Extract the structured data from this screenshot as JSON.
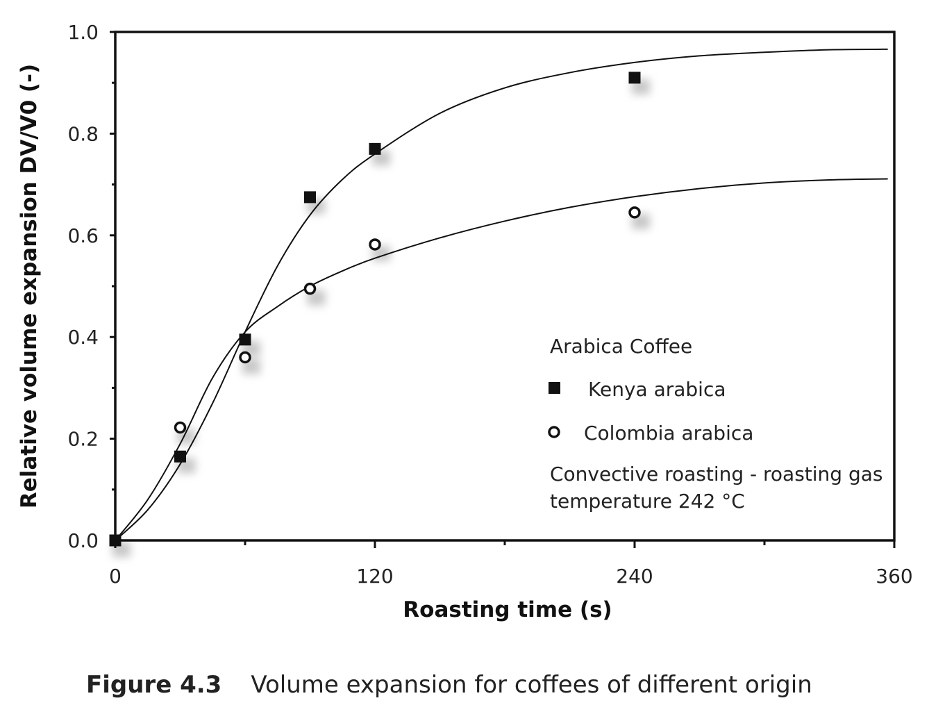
{
  "chart_data": {
    "type": "scatter",
    "title": "",
    "xlabel": "Roasting time (s)",
    "ylabel": "Relative volume expansion DV/V0 (-)",
    "xlim": [
      0,
      360
    ],
    "ylim": [
      0,
      1.0
    ],
    "x_ticks": [
      "0",
      "120",
      "240",
      "360"
    ],
    "y_ticks": [
      "0.0",
      "0.2",
      "0.4",
      "0.6",
      "0.8",
      "1.0"
    ],
    "legend_title": "Arabica Coffee",
    "legend_position": "lower-right",
    "note": "Convective roasting - roasting gas temperature 242 °C",
    "note_lines": [
      "Convective roasting - roasting gas",
      "temperature 242 °C"
    ],
    "series": [
      {
        "name": "Kenya arabica",
        "marker": "filled-square",
        "color": "#111111",
        "x": [
          0,
          30,
          60,
          90,
          120,
          240
        ],
        "y": [
          0.0,
          0.165,
          0.395,
          0.675,
          0.77,
          0.91
        ],
        "fit_curve": {
          "x": [
            0,
            15,
            30,
            45,
            60,
            75,
            90,
            105,
            120,
            150,
            180,
            210,
            240,
            270,
            300,
            330,
            357
          ],
          "y": [
            0.0,
            0.06,
            0.15,
            0.27,
            0.41,
            0.54,
            0.64,
            0.71,
            0.76,
            0.84,
            0.89,
            0.92,
            0.94,
            0.953,
            0.96,
            0.965,
            0.966
          ]
        }
      },
      {
        "name": "Colombia arabica",
        "marker": "open-circle",
        "color": "#111111",
        "x": [
          30,
          60,
          90,
          120,
          240
        ],
        "y": [
          0.222,
          0.36,
          0.495,
          0.582,
          0.645
        ],
        "fit_curve": {
          "x": [
            0,
            15,
            30,
            45,
            60,
            75,
            90,
            105,
            120,
            150,
            180,
            210,
            240,
            270,
            300,
            330,
            357
          ],
          "y": [
            0.0,
            0.08,
            0.19,
            0.32,
            0.41,
            0.46,
            0.5,
            0.53,
            0.555,
            0.595,
            0.628,
            0.655,
            0.676,
            0.692,
            0.703,
            0.709,
            0.711
          ]
        }
      }
    ]
  },
  "caption": {
    "label": "Figure 4.3",
    "text": "Volume expansion for coffees of different origin"
  }
}
